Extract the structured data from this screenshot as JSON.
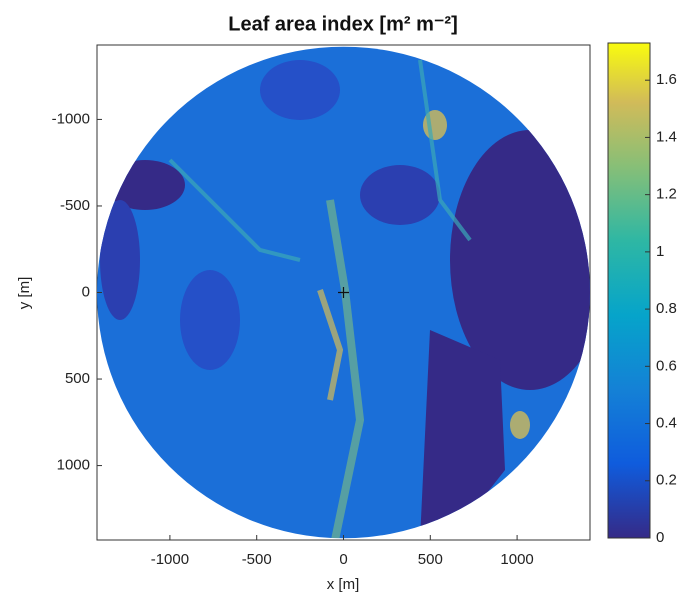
{
  "chart_data": {
    "type": "heatmap",
    "title": "Leaf area index [m² m⁻²]",
    "x_label": "x [m]",
    "y_label": "y [m]",
    "xlim": [
      -1420,
      1420
    ],
    "xticks": [
      -1000,
      -500,
      0,
      500,
      1000
    ],
    "ylim": [
      -1430,
      1430
    ],
    "yticks": [
      -1000,
      -500,
      0,
      500,
      1000
    ],
    "y_reversed": true,
    "clim": [
      0,
      1.73
    ],
    "cticks": [
      0,
      0.2,
      0.4,
      0.6,
      0.8,
      1,
      1.2,
      1.4,
      1.6
    ]
  }
}
